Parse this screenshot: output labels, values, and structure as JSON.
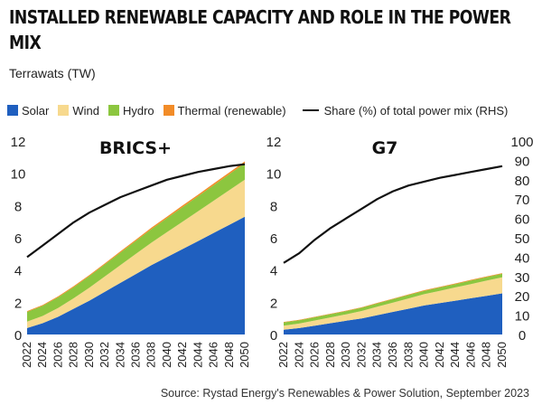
{
  "title": "INSTALLED RENEWABLE CAPACITY AND ROLE IN THE POWER MIX",
  "unit_label": "Terrawats (TW)",
  "source": "Source: Rystad Energy's Renewables & Power Solution, September 2023",
  "legend": [
    {
      "label": "Solar",
      "color": "#1f5fbf",
      "kind": "swatch"
    },
    {
      "label": "Wind",
      "color": "#f7d98e",
      "kind": "swatch"
    },
    {
      "label": "Hydro",
      "color": "#8cc63f",
      "kind": "swatch"
    },
    {
      "label": "Thermal (renewable)",
      "color": "#f28c28",
      "kind": "swatch"
    },
    {
      "label": "Share (%) of total power mix (RHS)",
      "color": "#111111",
      "kind": "line"
    }
  ],
  "chart_data": [
    {
      "type": "area",
      "title": "BRICS+",
      "x": [
        2022,
        2024,
        2026,
        2028,
        2030,
        2032,
        2034,
        2036,
        2038,
        2040,
        2042,
        2044,
        2046,
        2048,
        2050
      ],
      "xticks": [
        "2022",
        "2024",
        "2026",
        "2028",
        "2030",
        "2032",
        "2034",
        "2036",
        "2038",
        "2040",
        "2042",
        "2044",
        "2046",
        "2048",
        "2050"
      ],
      "ylim": [
        0,
        12
      ],
      "yticks": [
        0,
        2,
        4,
        6,
        8,
        10,
        12
      ],
      "y2lim": [
        0,
        100
      ],
      "stacked": true,
      "series": [
        {
          "name": "Solar",
          "color": "#1f5fbf",
          "values": [
            0.4,
            0.7,
            1.1,
            1.6,
            2.1,
            2.65,
            3.2,
            3.75,
            4.3,
            4.8,
            5.3,
            5.8,
            6.3,
            6.8,
            7.3
          ]
        },
        {
          "name": "Wind",
          "color": "#f7d98e",
          "values": [
            0.4,
            0.45,
            0.55,
            0.65,
            0.8,
            0.95,
            1.1,
            1.25,
            1.4,
            1.55,
            1.7,
            1.85,
            2.0,
            2.15,
            2.3
          ]
        },
        {
          "name": "Hydro",
          "color": "#8cc63f",
          "values": [
            0.6,
            0.63,
            0.66,
            0.69,
            0.72,
            0.75,
            0.78,
            0.81,
            0.84,
            0.87,
            0.9,
            0.93,
            0.96,
            0.99,
            1.02
          ]
        },
        {
          "name": "Thermal (renewable)",
          "color": "#f28c28",
          "values": [
            0.05,
            0.05,
            0.06,
            0.06,
            0.07,
            0.07,
            0.08,
            0.08,
            0.09,
            0.09,
            0.1,
            0.1,
            0.11,
            0.11,
            0.12
          ]
        }
      ],
      "share": {
        "name": "Share (%) of total power mix (RHS)",
        "color": "#111111",
        "values": [
          40,
          46,
          52,
          58,
          63,
          67,
          71,
          74,
          77,
          80,
          82,
          84,
          85.5,
          87,
          88
        ]
      }
    },
    {
      "type": "area",
      "title": "G7",
      "x": [
        2022,
        2024,
        2026,
        2028,
        2030,
        2032,
        2034,
        2036,
        2038,
        2040,
        2042,
        2044,
        2046,
        2048,
        2050
      ],
      "xticks": [
        "2022",
        "2024",
        "2026",
        "2028",
        "2030",
        "2032",
        "2034",
        "2036",
        "2038",
        "2040",
        "2042",
        "2044",
        "2046",
        "2048",
        "2050"
      ],
      "ylim": [
        0,
        12
      ],
      "yticks": [
        0,
        2,
        4,
        6,
        8,
        10,
        12
      ],
      "y2lim": [
        0,
        100
      ],
      "y2ticks": [
        0,
        10,
        20,
        30,
        40,
        50,
        60,
        70,
        80,
        90,
        100
      ],
      "stacked": true,
      "series": [
        {
          "name": "Solar",
          "color": "#1f5fbf",
          "values": [
            0.3,
            0.4,
            0.55,
            0.7,
            0.85,
            1.0,
            1.2,
            1.4,
            1.6,
            1.8,
            1.95,
            2.1,
            2.25,
            2.4,
            2.55
          ]
        },
        {
          "name": "Wind",
          "color": "#f7d98e",
          "values": [
            0.25,
            0.28,
            0.32,
            0.36,
            0.4,
            0.46,
            0.52,
            0.58,
            0.64,
            0.7,
            0.76,
            0.82,
            0.88,
            0.94,
            1.0
          ]
        },
        {
          "name": "Hydro",
          "color": "#8cc63f",
          "values": [
            0.2,
            0.2,
            0.2,
            0.2,
            0.2,
            0.2,
            0.21,
            0.21,
            0.21,
            0.21,
            0.21,
            0.21,
            0.22,
            0.22,
            0.22
          ]
        },
        {
          "name": "Thermal (renewable)",
          "color": "#f28c28",
          "values": [
            0.03,
            0.03,
            0.03,
            0.03,
            0.03,
            0.03,
            0.03,
            0.03,
            0.04,
            0.04,
            0.04,
            0.04,
            0.04,
            0.04,
            0.04
          ]
        }
      ],
      "share": {
        "name": "Share (%) of total power mix (RHS)",
        "color": "#111111",
        "values": [
          37,
          42,
          49,
          55,
          60,
          65,
          70,
          74,
          77,
          79,
          81,
          82.5,
          84,
          85.5,
          87
        ]
      }
    }
  ]
}
